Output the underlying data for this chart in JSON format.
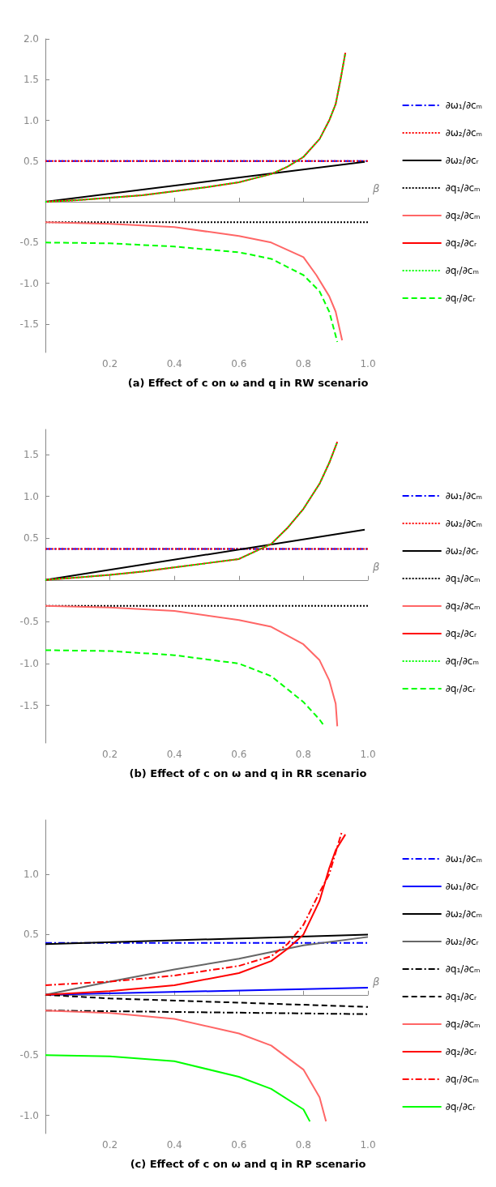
{
  "chart_data": [
    {
      "type": "line",
      "title": "(a) Effect of c on ω and q in RW scenario",
      "xlabel": "β",
      "xlim": [
        0,
        1
      ],
      "ylim": [
        -1.85,
        2.0
      ],
      "xticks": [
        {
          "value": 0.2,
          "label": "0.2"
        },
        {
          "value": 0.4,
          "label": "0.4"
        },
        {
          "value": 0.6,
          "label": "0.6"
        },
        {
          "value": 0.8,
          "label": "0.8"
        },
        {
          "value": 1,
          "label": "1.0"
        }
      ],
      "yticks": [
        {
          "value": -1.5,
          "label": "-1.5"
        },
        {
          "value": -1,
          "label": "-1.0"
        },
        {
          "value": -0.5,
          "label": "-0.5"
        },
        {
          "value": 0.5,
          "label": "0.5"
        },
        {
          "value": 1,
          "label": "1.0"
        },
        {
          "value": 1.5,
          "label": "1.5"
        },
        {
          "value": 2,
          "label": "2.0"
        }
      ],
      "grid": false,
      "legend": "right",
      "marker": "none",
      "series": [
        {
          "name": "∂ω₁/∂cₘ",
          "color": "#0000ff",
          "line_style": "dashdot",
          "x": [
            0,
            1
          ],
          "values": [
            0.5,
            0.5
          ]
        },
        {
          "name": "∂ω₂/∂cₘ",
          "color": "#ff0000",
          "line_style": "dotted",
          "x": [
            0,
            1
          ],
          "values": [
            0.5,
            0.5
          ]
        },
        {
          "name": "∂ω₂/∂cᵣ",
          "color": "#000000",
          "line_style": "solid",
          "x": [
            0,
            0.99
          ],
          "values": [
            0,
            0.49
          ]
        },
        {
          "name": "∂q₁/∂cₘ",
          "color": "#000000",
          "line_style": "dotted",
          "x": [
            0,
            1
          ],
          "values": [
            -0.25,
            -0.25
          ]
        },
        {
          "name": "∂q₂/∂cₘ",
          "color": "#ff6666",
          "line_style": "solid",
          "x": [
            0,
            0.2,
            0.4,
            0.6,
            0.7,
            0.8,
            0.84,
            0.88,
            0.9,
            0.92
          ],
          "values": [
            -0.25,
            -0.27,
            -0.31,
            -0.42,
            -0.5,
            -0.68,
            -0.9,
            -1.16,
            -1.35,
            -1.7
          ]
        },
        {
          "name": "∂q₂/∂cᵣ",
          "color": "#ff0000",
          "line_style": "solid",
          "x": [
            0,
            0.1,
            0.2,
            0.3,
            0.4,
            0.5,
            0.6,
            0.65,
            0.7,
            0.75,
            0.8,
            0.85,
            0.88,
            0.9,
            0.915,
            0.93
          ],
          "values": [
            0,
            0.02,
            0.05,
            0.08,
            0.13,
            0.18,
            0.24,
            0.29,
            0.34,
            0.43,
            0.55,
            0.77,
            1.0,
            1.2,
            1.5,
            1.83
          ]
        },
        {
          "name": "∂qᵣ/∂cₘ",
          "color": "#00ff00",
          "line_style": "dotted",
          "x": [
            0,
            0.1,
            0.2,
            0.3,
            0.4,
            0.5,
            0.6,
            0.65,
            0.7,
            0.75,
            0.8,
            0.85,
            0.88,
            0.9,
            0.915,
            0.93
          ],
          "values": [
            0,
            0.02,
            0.05,
            0.08,
            0.13,
            0.18,
            0.24,
            0.29,
            0.34,
            0.43,
            0.55,
            0.77,
            1.0,
            1.2,
            1.5,
            1.83
          ]
        },
        {
          "name": "∂qᵣ/∂cᵣ",
          "color": "#00ff00",
          "line_style": "dashed",
          "x": [
            0,
            0.2,
            0.4,
            0.6,
            0.7,
            0.8,
            0.85,
            0.88,
            0.905
          ],
          "values": [
            -0.5,
            -0.51,
            -0.55,
            -0.62,
            -0.7,
            -0.9,
            -1.1,
            -1.35,
            -1.72
          ]
        }
      ]
    },
    {
      "type": "line",
      "title": "(b) Effect of c on ω and q in RR scenario",
      "xlabel": "β",
      "xlim": [
        0,
        1
      ],
      "ylim": [
        -1.95,
        1.8
      ],
      "xticks": [
        {
          "value": 0.2,
          "label": "0.2"
        },
        {
          "value": 0.4,
          "label": "0.4"
        },
        {
          "value": 0.6,
          "label": "0.6"
        },
        {
          "value": 0.8,
          "label": "0.8"
        },
        {
          "value": 1,
          "label": "1.0"
        }
      ],
      "yticks": [
        {
          "value": -1.5,
          "label": "-1.5"
        },
        {
          "value": -1,
          "label": "-1.0"
        },
        {
          "value": -0.5,
          "label": "-0.5"
        },
        {
          "value": 0.5,
          "label": "0.5"
        },
        {
          "value": 1,
          "label": "1.0"
        },
        {
          "value": 1.5,
          "label": "1.5"
        }
      ],
      "grid": false,
      "legend": "right",
      "marker": "none",
      "series": [
        {
          "name": "∂ω₁/∂cₘ",
          "color": "#0000ff",
          "line_style": "dashdot",
          "x": [
            0,
            1
          ],
          "values": [
            0.37,
            0.37
          ]
        },
        {
          "name": "∂ω₂/∂cₘ",
          "color": "#ff0000",
          "line_style": "dotted",
          "x": [
            0,
            1
          ],
          "values": [
            0.37,
            0.37
          ]
        },
        {
          "name": "∂ω₂/∂cᵣ",
          "color": "#000000",
          "line_style": "solid",
          "x": [
            0,
            0.99
          ],
          "values": [
            0,
            0.6
          ]
        },
        {
          "name": "∂q₁/∂cₘ",
          "color": "#000000",
          "line_style": "dotted",
          "x": [
            0,
            1
          ],
          "values": [
            -0.31,
            -0.31
          ]
        },
        {
          "name": "∂q₂/∂cₘ",
          "color": "#ff6666",
          "line_style": "solid",
          "x": [
            0,
            0.2,
            0.4,
            0.6,
            0.7,
            0.8,
            0.85,
            0.88,
            0.9,
            0.905
          ],
          "values": [
            -0.31,
            -0.33,
            -0.37,
            -0.48,
            -0.56,
            -0.77,
            -0.96,
            -1.2,
            -1.48,
            -1.75
          ]
        },
        {
          "name": "∂q₂/∂cᵣ",
          "color": "#ff0000",
          "line_style": "solid",
          "x": [
            0,
            0.1,
            0.2,
            0.3,
            0.4,
            0.5,
            0.6,
            0.7,
            0.75,
            0.8,
            0.85,
            0.88,
            0.905
          ],
          "values": [
            0,
            0.03,
            0.06,
            0.1,
            0.15,
            0.2,
            0.25,
            0.43,
            0.62,
            0.85,
            1.15,
            1.4,
            1.65
          ]
        },
        {
          "name": "∂qᵣ/∂cₘ",
          "color": "#00ff00",
          "line_style": "dotted",
          "x": [
            0,
            0.1,
            0.2,
            0.3,
            0.4,
            0.5,
            0.6,
            0.7,
            0.75,
            0.8,
            0.85,
            0.88,
            0.905
          ],
          "values": [
            0,
            0.03,
            0.06,
            0.1,
            0.15,
            0.2,
            0.25,
            0.43,
            0.62,
            0.85,
            1.15,
            1.4,
            1.65
          ]
        },
        {
          "name": "∂qᵣ/∂cᵣ",
          "color": "#00ff00",
          "line_style": "dashed",
          "x": [
            0,
            0.2,
            0.4,
            0.6,
            0.7,
            0.8,
            0.85,
            0.865
          ],
          "values": [
            -0.84,
            -0.85,
            -0.9,
            -1.0,
            -1.15,
            -1.46,
            -1.67,
            -1.75
          ]
        }
      ]
    },
    {
      "type": "line",
      "title": "(c) Effect of c on ω and q in RP scenario",
      "xlabel": "β",
      "xlim": [
        0,
        1
      ],
      "ylim": [
        -1.15,
        1.45
      ],
      "xticks": [
        {
          "value": 0.2,
          "label": "0.2"
        },
        {
          "value": 0.4,
          "label": "0.4"
        },
        {
          "value": 0.6,
          "label": "0.6"
        },
        {
          "value": 0.8,
          "label": "0.8"
        },
        {
          "value": 1,
          "label": "1.0"
        }
      ],
      "yticks": [
        {
          "value": -1,
          "label": "-1.0"
        },
        {
          "value": -0.5,
          "label": "-0.5"
        },
        {
          "value": 0.5,
          "label": "0.5"
        },
        {
          "value": 1,
          "label": "1.0"
        }
      ],
      "grid": false,
      "legend": "right",
      "marker": "none",
      "series": [
        {
          "name": "∂ω₁/∂cₘ",
          "color": "#0000ff",
          "line_style": "dashdot",
          "x": [
            0,
            1
          ],
          "values": [
            0.43,
            0.43
          ]
        },
        {
          "name": "∂ω₁/∂cᵣ",
          "color": "#0000ff",
          "line_style": "solid",
          "x": [
            0,
            1
          ],
          "values": [
            0,
            0.06
          ]
        },
        {
          "name": "∂ω₂/∂cₘ",
          "color": "#000000",
          "line_style": "solid",
          "x": [
            0,
            1
          ],
          "values": [
            0.42,
            0.5
          ]
        },
        {
          "name": "∂ω₂/∂cᵣ",
          "color": "#666666",
          "line_style": "solid",
          "x": [
            0,
            0.2,
            0.4,
            0.6,
            0.8,
            1
          ],
          "values": [
            0,
            0.11,
            0.21,
            0.3,
            0.41,
            0.48
          ]
        },
        {
          "name": "∂q₁/∂cₘ",
          "color": "#000000",
          "line_style": "dashdot",
          "x": [
            0,
            1
          ],
          "values": [
            -0.13,
            -0.16
          ]
        },
        {
          "name": "∂q₁/∂cᵣ",
          "color": "#000000",
          "line_style": "dashed",
          "x": [
            0,
            0.2,
            1
          ],
          "values": [
            0,
            -0.03,
            -0.1
          ]
        },
        {
          "name": "∂q₂/∂cₘ",
          "color": "#ff6666",
          "line_style": "solid",
          "x": [
            0,
            0.2,
            0.4,
            0.6,
            0.7,
            0.8,
            0.85,
            0.87
          ],
          "values": [
            -0.13,
            -0.15,
            -0.2,
            -0.32,
            -0.42,
            -0.62,
            -0.85,
            -1.05
          ]
        },
        {
          "name": "∂q₂/∂cᵣ",
          "color": "#ff0000",
          "line_style": "solid",
          "x": [
            0,
            0.2,
            0.4,
            0.6,
            0.7,
            0.75,
            0.8,
            0.85,
            0.88,
            0.9,
            0.93
          ],
          "values": [
            0,
            0.03,
            0.08,
            0.18,
            0.28,
            0.38,
            0.5,
            0.78,
            1.05,
            1.2,
            1.33
          ]
        },
        {
          "name": "∂qᵣ/∂cₘ",
          "color": "#ff0000",
          "line_style": "dashdot",
          "x": [
            0,
            0.2,
            0.4,
            0.6,
            0.7,
            0.75,
            0.8,
            0.85,
            0.88,
            0.92
          ],
          "values": [
            0.08,
            0.11,
            0.16,
            0.24,
            0.32,
            0.42,
            0.58,
            0.85,
            1.0,
            1.36
          ]
        },
        {
          "name": "∂qᵣ/∂cᵣ",
          "color": "#00ff00",
          "line_style": "solid",
          "x": [
            0,
            0.2,
            0.4,
            0.6,
            0.7,
            0.8,
            0.82
          ],
          "values": [
            -0.5,
            -0.51,
            -0.55,
            -0.68,
            -0.78,
            -0.95,
            -1.05
          ]
        }
      ]
    }
  ]
}
